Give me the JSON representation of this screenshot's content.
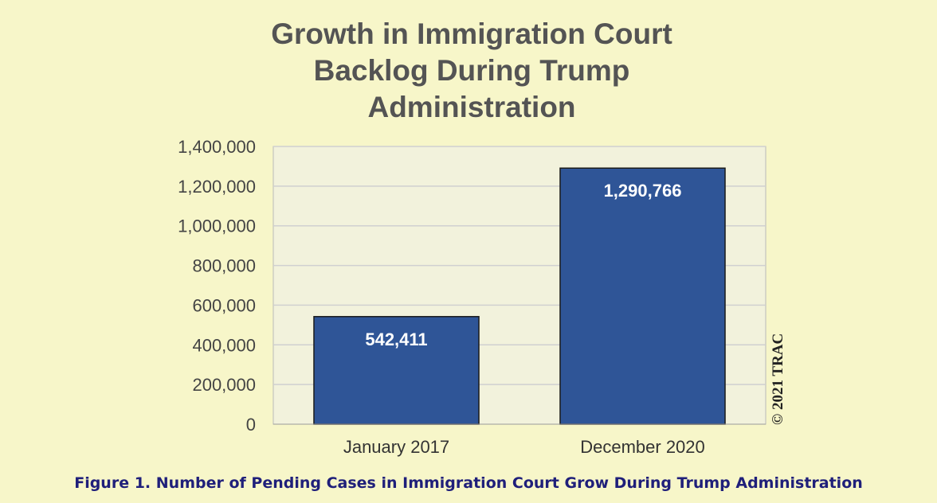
{
  "chart_data": {
    "type": "bar",
    "title_lines": [
      "Growth in Immigration Court",
      "Backlog During Trump",
      "Administration"
    ],
    "categories": [
      "January 2017",
      "December 2020"
    ],
    "values": [
      542411,
      1290766
    ],
    "data_labels": [
      "542,411",
      "1,290,766"
    ],
    "ylim": [
      0,
      1400000
    ],
    "yticks": [
      0,
      200000,
      400000,
      600000,
      800000,
      1000000,
      1200000,
      1400000
    ],
    "ytick_labels": [
      "0",
      "200,000",
      "400,000",
      "600,000",
      "800,000",
      "1,000,000",
      "1,200,000",
      "1,400,000"
    ],
    "grid": true,
    "colors": {
      "bar": "#2f5597",
      "bar_edge": "#1a1a1a",
      "plot_bg": "#f2f2dc",
      "page_bg": "#f7f6c9",
      "grid": "#d0d0d0"
    }
  },
  "watermark": "© 2021 TRAC",
  "caption": "Figure 1. Number of Pending Cases in Immigration Court Grow During Trump Administration"
}
